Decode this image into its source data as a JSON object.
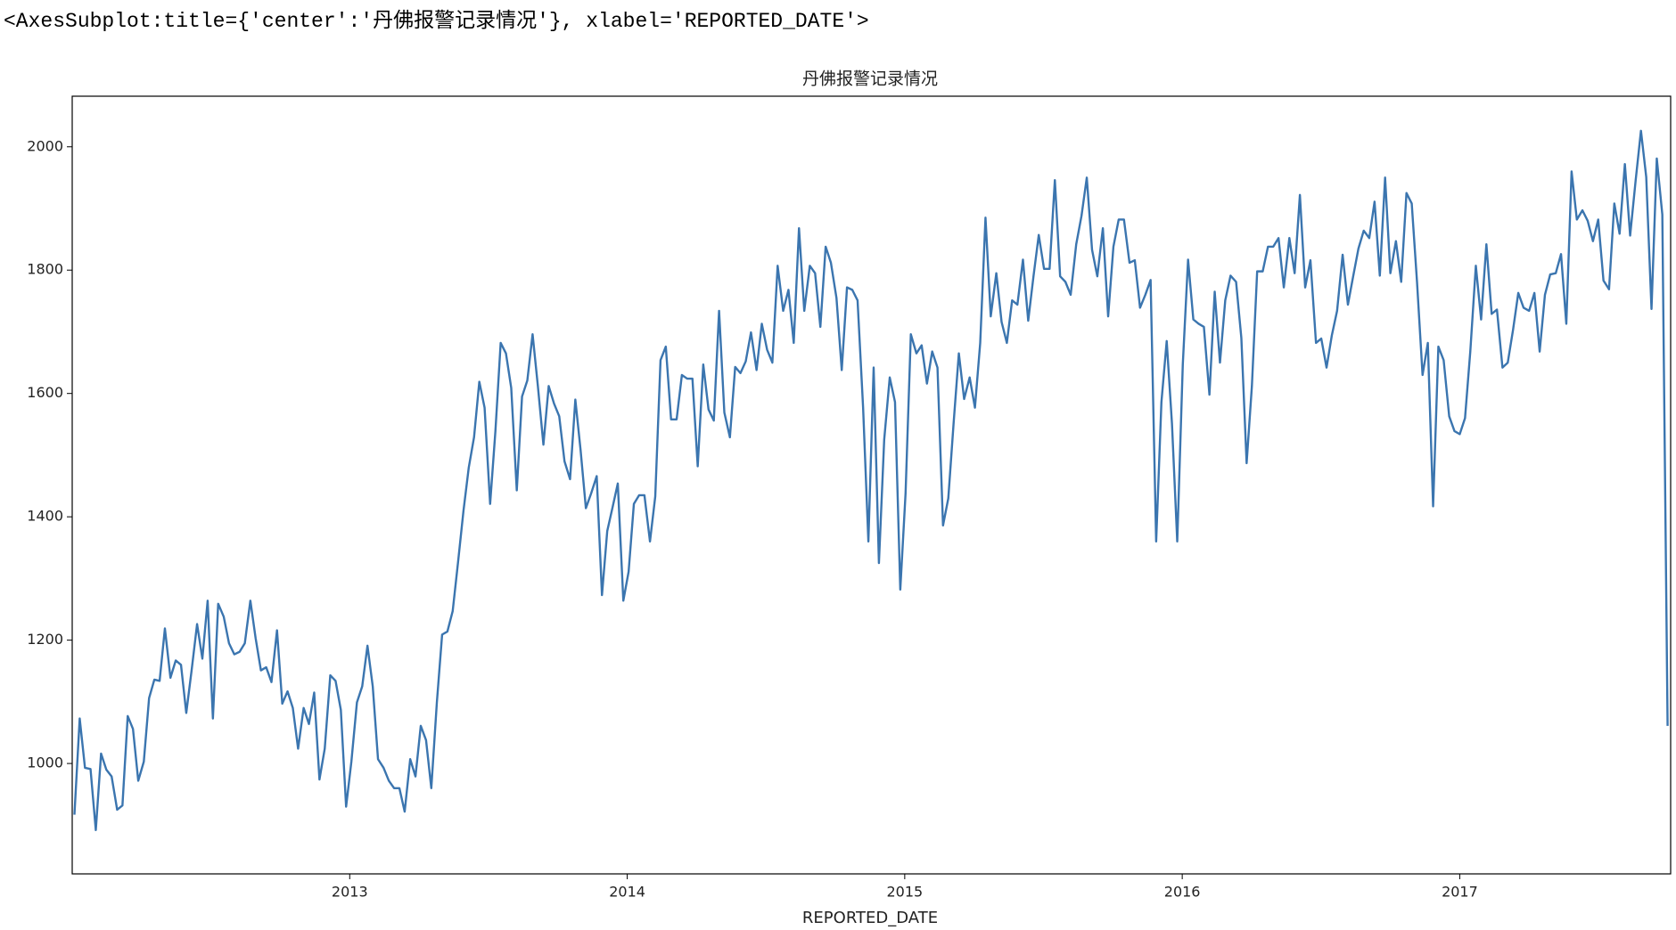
{
  "header": {
    "text": "<AxesSubplot:title={'center':'丹佛报警记录情况'}, xlabel='REPORTED_DATE'>"
  },
  "chart_data": {
    "type": "line",
    "title": "丹佛报警记录情况",
    "xlabel": "REPORTED_DATE",
    "xlim": [
      2012.0,
      2017.76
    ],
    "xticks": [
      2013,
      2014,
      2015,
      2016,
      2017
    ],
    "ylim": [
      821,
      2082
    ],
    "yticks": [
      1000,
      1200,
      1400,
      1600,
      1800,
      2000
    ],
    "grid": false,
    "x": [
      2012.008,
      2012.027,
      2012.046,
      2012.066,
      2012.085,
      2012.104,
      2012.123,
      2012.142,
      2012.162,
      2012.181,
      2012.2,
      2012.219,
      2012.238,
      2012.258,
      2012.277,
      2012.296,
      2012.315,
      2012.334,
      2012.354,
      2012.373,
      2012.392,
      2012.411,
      2012.43,
      2012.45,
      2012.469,
      2012.488,
      2012.507,
      2012.526,
      2012.546,
      2012.565,
      2012.584,
      2012.603,
      2012.622,
      2012.642,
      2012.661,
      2012.68,
      2012.699,
      2012.718,
      2012.738,
      2012.757,
      2012.776,
      2012.795,
      2012.814,
      2012.834,
      2012.853,
      2012.872,
      2012.891,
      2012.91,
      2012.93,
      2012.949,
      2012.968,
      2012.987,
      2013.006,
      2013.026,
      2013.045,
      2013.064,
      2013.083,
      2013.102,
      2013.122,
      2013.141,
      2013.16,
      2013.179,
      2013.198,
      2013.218,
      2013.237,
      2013.256,
      2013.275,
      2013.294,
      2013.314,
      2013.333,
      2013.352,
      2013.371,
      2013.39,
      2013.41,
      2013.429,
      2013.448,
      2013.467,
      2013.486,
      2013.506,
      2013.525,
      2013.544,
      2013.563,
      2013.582,
      2013.602,
      2013.621,
      2013.64,
      2013.659,
      2013.678,
      2013.698,
      2013.717,
      2013.736,
      2013.755,
      2013.774,
      2013.794,
      2013.813,
      2013.832,
      2013.851,
      2013.87,
      2013.89,
      2013.909,
      2013.928,
      2013.947,
      2013.966,
      2013.986,
      2014.005,
      2014.024,
      2014.043,
      2014.062,
      2014.082,
      2014.101,
      2014.12,
      2014.139,
      2014.158,
      2014.178,
      2014.197,
      2014.216,
      2014.235,
      2014.254,
      2014.274,
      2014.293,
      2014.312,
      2014.331,
      2014.35,
      2014.37,
      2014.389,
      2014.408,
      2014.427,
      2014.446,
      2014.466,
      2014.485,
      2014.504,
      2014.523,
      2014.542,
      2014.562,
      2014.581,
      2014.6,
      2014.619,
      2014.638,
      2014.658,
      2014.677,
      2014.696,
      2014.715,
      2014.734,
      2014.754,
      2014.773,
      2014.792,
      2014.811,
      2014.83,
      2014.85,
      2014.869,
      2014.888,
      2014.907,
      2014.926,
      2014.946,
      2014.965,
      2014.984,
      2015.003,
      2015.022,
      2015.042,
      2015.061,
      2015.08,
      2015.099,
      2015.118,
      2015.138,
      2015.157,
      2015.176,
      2015.195,
      2015.214,
      2015.234,
      2015.253,
      2015.272,
      2015.291,
      2015.31,
      2015.33,
      2015.349,
      2015.368,
      2015.387,
      2015.406,
      2015.426,
      2015.445,
      2015.464,
      2015.483,
      2015.502,
      2015.522,
      2015.541,
      2015.56,
      2015.579,
      2015.598,
      2015.618,
      2015.637,
      2015.656,
      2015.675,
      2015.694,
      2015.714,
      2015.733,
      2015.752,
      2015.771,
      2015.79,
      2015.81,
      2015.829,
      2015.848,
      2015.867,
      2015.886,
      2015.906,
      2015.925,
      2015.944,
      2015.963,
      2015.982,
      2016.002,
      2016.021,
      2016.04,
      2016.059,
      2016.078,
      2016.098,
      2016.117,
      2016.136,
      2016.155,
      2016.174,
      2016.194,
      2016.213,
      2016.232,
      2016.251,
      2016.27,
      2016.29,
      2016.309,
      2016.328,
      2016.347,
      2016.366,
      2016.386,
      2016.405,
      2016.424,
      2016.443,
      2016.462,
      2016.482,
      2016.501,
      2016.52,
      2016.539,
      2016.558,
      2016.578,
      2016.597,
      2016.616,
      2016.635,
      2016.654,
      2016.674,
      2016.693,
      2016.712,
      2016.731,
      2016.75,
      2016.77,
      2016.789,
      2016.808,
      2016.827,
      2016.846,
      2016.866,
      2016.885,
      2016.904,
      2016.923,
      2016.942,
      2016.962,
      2016.981,
      2017.0,
      2017.019,
      2017.038,
      2017.058,
      2017.077,
      2017.096,
      2017.115,
      2017.134,
      2017.154,
      2017.173,
      2017.192,
      2017.211,
      2017.23,
      2017.25,
      2017.269,
      2017.288,
      2017.307,
      2017.326,
      2017.346,
      2017.365,
      2017.384,
      2017.403,
      2017.422,
      2017.442,
      2017.461,
      2017.48,
      2017.499,
      2017.518,
      2017.538,
      2017.557,
      2017.576,
      2017.595,
      2017.614,
      2017.634,
      2017.653,
      2017.672,
      2017.691,
      2017.71,
      2017.73,
      2017.749
    ],
    "series": [
      {
        "color": "#3b75af",
        "values": [
          917,
          1073,
          993,
          991,
          892,
          1016,
          990,
          979,
          925,
          932,
          1077,
          1056,
          972,
          1003,
          1106,
          1136,
          1134,
          1219,
          1139,
          1167,
          1160,
          1082,
          1150,
          1226,
          1170,
          1264,
          1073,
          1259,
          1238,
          1195,
          1177,
          1181,
          1195,
          1264,
          1203,
          1151,
          1156,
          1132,
          1216,
          1097,
          1117,
          1090,
          1024,
          1090,
          1064,
          1115,
          974,
          1024,
          1143,
          1134,
          1087,
          930,
          1003,
          1099,
          1125,
          1191,
          1125,
          1007,
          993,
          972,
          960,
          960,
          922,
          1007,
          979,
          1061,
          1038,
          960,
          1099,
          1209,
          1214,
          1247,
          1325,
          1410,
          1480,
          1529,
          1619,
          1577,
          1421,
          1539,
          1682,
          1665,
          1609,
          1443,
          1595,
          1621,
          1696,
          1612,
          1517,
          1612,
          1584,
          1563,
          1490,
          1461,
          1590,
          1508,
          1414,
          1438,
          1466,
          1273,
          1377,
          1415,
          1454,
          1264,
          1311,
          1421,
          1435,
          1435,
          1360,
          1433,
          1654,
          1676,
          1558,
          1558,
          1630,
          1624,
          1624,
          1482,
          1647,
          1574,
          1556,
          1734,
          1569,
          1529,
          1643,
          1633,
          1652,
          1699,
          1638,
          1713,
          1671,
          1650,
          1807,
          1734,
          1768,
          1682,
          1868,
          1734,
          1807,
          1795,
          1708,
          1838,
          1812,
          1755,
          1638,
          1772,
          1768,
          1751,
          1577,
          1360,
          1642,
          1325,
          1525,
          1626,
          1586,
          1282,
          1438,
          1696,
          1665,
          1678,
          1616,
          1668,
          1642,
          1386,
          1430,
          1551,
          1665,
          1591,
          1626,
          1577,
          1682,
          1885,
          1725,
          1795,
          1716,
          1682,
          1751,
          1744,
          1817,
          1718,
          1790,
          1857,
          1802,
          1802,
          1946,
          1790,
          1781,
          1760,
          1842,
          1888,
          1950,
          1833,
          1790,
          1868,
          1725,
          1838,
          1882,
          1882,
          1812,
          1816,
          1739,
          1760,
          1784,
          1360,
          1586,
          1685,
          1551,
          1360,
          1647,
          1817,
          1720,
          1713,
          1708,
          1598,
          1765,
          1650,
          1751,
          1791,
          1781,
          1690,
          1487,
          1612,
          1798,
          1798,
          1838,
          1838,
          1852,
          1772,
          1852,
          1795,
          1922,
          1772,
          1816,
          1682,
          1689,
          1642,
          1694,
          1734,
          1825,
          1744,
          1790,
          1835,
          1864,
          1852,
          1911,
          1791,
          1950,
          1795,
          1847,
          1781,
          1925,
          1908,
          1781,
          1630,
          1682,
          1417,
          1676,
          1654,
          1563,
          1539,
          1534,
          1560,
          1668,
          1807,
          1720,
          1842,
          1729,
          1736,
          1642,
          1650,
          1703,
          1763,
          1739,
          1734,
          1763,
          1668,
          1760,
          1793,
          1795,
          1826,
          1713,
          1960,
          1882,
          1897,
          1880,
          1847,
          1882,
          1783,
          1769,
          1908,
          1859,
          1972,
          1856,
          1946,
          2026,
          1951,
          1737,
          1981,
          1890,
          1061
        ]
      }
    ]
  }
}
